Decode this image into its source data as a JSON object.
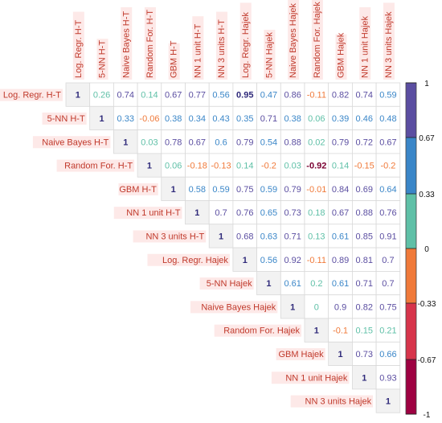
{
  "chart_data": {
    "type": "heatmap",
    "subtype": "correlation-matrix-upper-triangle",
    "variables": [
      "Log. Regr. H-T",
      "5-NN H-T",
      "Naive Bayes H-T",
      "Random For. H-T",
      "GBM H-T",
      "NN 1 unit H-T",
      "NN 3 units H-T",
      "Log. Regr. Hajek",
      "5-NN Hajek",
      "Naive Bayes Hajek",
      "Random For. Hajek",
      "GBM Hajek",
      "NN 1 unit Hajek",
      "NN 3 units Hajek"
    ],
    "matrix": [
      [
        1,
        0.26,
        0.74,
        0.14,
        0.67,
        0.77,
        0.56,
        0.95,
        0.47,
        0.86,
        -0.11,
        0.82,
        0.74,
        0.59
      ],
      [
        null,
        1,
        0.33,
        -0.06,
        0.38,
        0.34,
        0.43,
        0.35,
        0.71,
        0.38,
        0.06,
        0.39,
        0.46,
        0.48
      ],
      [
        null,
        null,
        1,
        0.03,
        0.78,
        0.67,
        0.6,
        0.79,
        0.54,
        0.88,
        0.02,
        0.79,
        0.72,
        0.67
      ],
      [
        null,
        null,
        null,
        1,
        0.06,
        -0.18,
        -0.13,
        0.14,
        -0.2,
        0.03,
        -0.92,
        0.14,
        -0.15,
        -0.2
      ],
      [
        null,
        null,
        null,
        null,
        1,
        0.58,
        0.59,
        0.75,
        0.59,
        0.79,
        -0.01,
        0.84,
        0.69,
        0.64
      ],
      [
        null,
        null,
        null,
        null,
        null,
        1,
        0.7,
        0.76,
        0.65,
        0.73,
        0.18,
        0.67,
        0.88,
        0.76
      ],
      [
        null,
        null,
        null,
        null,
        null,
        null,
        1,
        0.68,
        0.63,
        0.71,
        0.13,
        0.61,
        0.85,
        0.91
      ],
      [
        null,
        null,
        null,
        null,
        null,
        null,
        null,
        1,
        0.56,
        0.92,
        -0.11,
        0.89,
        0.81,
        0.7
      ],
      [
        null,
        null,
        null,
        null,
        null,
        null,
        null,
        null,
        1,
        0.61,
        0.2,
        0.61,
        0.71,
        0.7
      ],
      [
        null,
        null,
        null,
        null,
        null,
        null,
        null,
        null,
        null,
        1,
        0,
        0.9,
        0.82,
        0.75
      ],
      [
        null,
        null,
        null,
        null,
        null,
        null,
        null,
        null,
        null,
        null,
        1,
        -0.1,
        0.15,
        0.21
      ],
      [
        null,
        null,
        null,
        null,
        null,
        null,
        null,
        null,
        null,
        null,
        null,
        1,
        0.73,
        0.66
      ],
      [
        null,
        null,
        null,
        null,
        null,
        null,
        null,
        null,
        null,
        null,
        null,
        null,
        1,
        0.93
      ],
      [
        null,
        null,
        null,
        null,
        null,
        null,
        null,
        null,
        null,
        null,
        null,
        null,
        null,
        1
      ]
    ],
    "value_range": [
      -1,
      1
    ],
    "colorbar": {
      "ticks": [
        1,
        0.67,
        0.33,
        0,
        -0.33,
        -0.67,
        -1
      ],
      "bands": [
        {
          "from": 0.67,
          "to": 1,
          "color": "#5b4ea1"
        },
        {
          "from": 0.33,
          "to": 0.67,
          "color": "#3a86c8"
        },
        {
          "from": 0,
          "to": 0.33,
          "color": "#5fc0a7"
        },
        {
          "from": -0.33,
          "to": 0,
          "color": "#f07a3a"
        },
        {
          "from": -0.67,
          "to": -0.33,
          "color": "#d7344b"
        },
        {
          "from": -1,
          "to": -0.67,
          "color": "#9e0142"
        }
      ]
    },
    "label_color": "#c0392b",
    "label_bg": "#fde9e8",
    "grid": true
  }
}
